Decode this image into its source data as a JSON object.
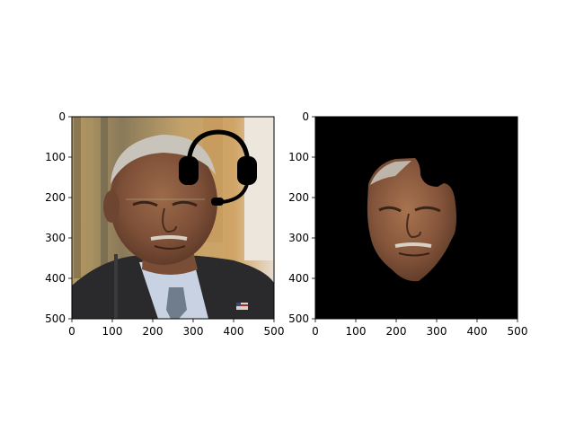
{
  "figure": {
    "background": "#ffffff",
    "axis_color": "#000000"
  },
  "chart_data": [
    {
      "type": "image",
      "panel": "left",
      "content": "photo of a man in a suit with a red, white and blue tie pin; black headset icon overlay near top-right",
      "xlim": [
        0,
        500
      ],
      "ylim": [
        500,
        0
      ],
      "xticks": [
        0,
        100,
        200,
        300,
        400,
        500
      ],
      "yticks": [
        0,
        100,
        200,
        300,
        400,
        500
      ],
      "xlabel": "",
      "ylabel": "",
      "title": "",
      "overlay_icon": "headset-icon"
    },
    {
      "type": "image",
      "panel": "right",
      "content": "segmented face region on black background",
      "xlim": [
        0,
        500
      ],
      "ylim": [
        500,
        0
      ],
      "xticks": [
        0,
        100,
        200,
        300,
        400,
        500
      ],
      "yticks": [
        0,
        100,
        200,
        300,
        400,
        500
      ],
      "xlabel": "",
      "ylabel": "",
      "title": "",
      "background": "#000000"
    }
  ]
}
